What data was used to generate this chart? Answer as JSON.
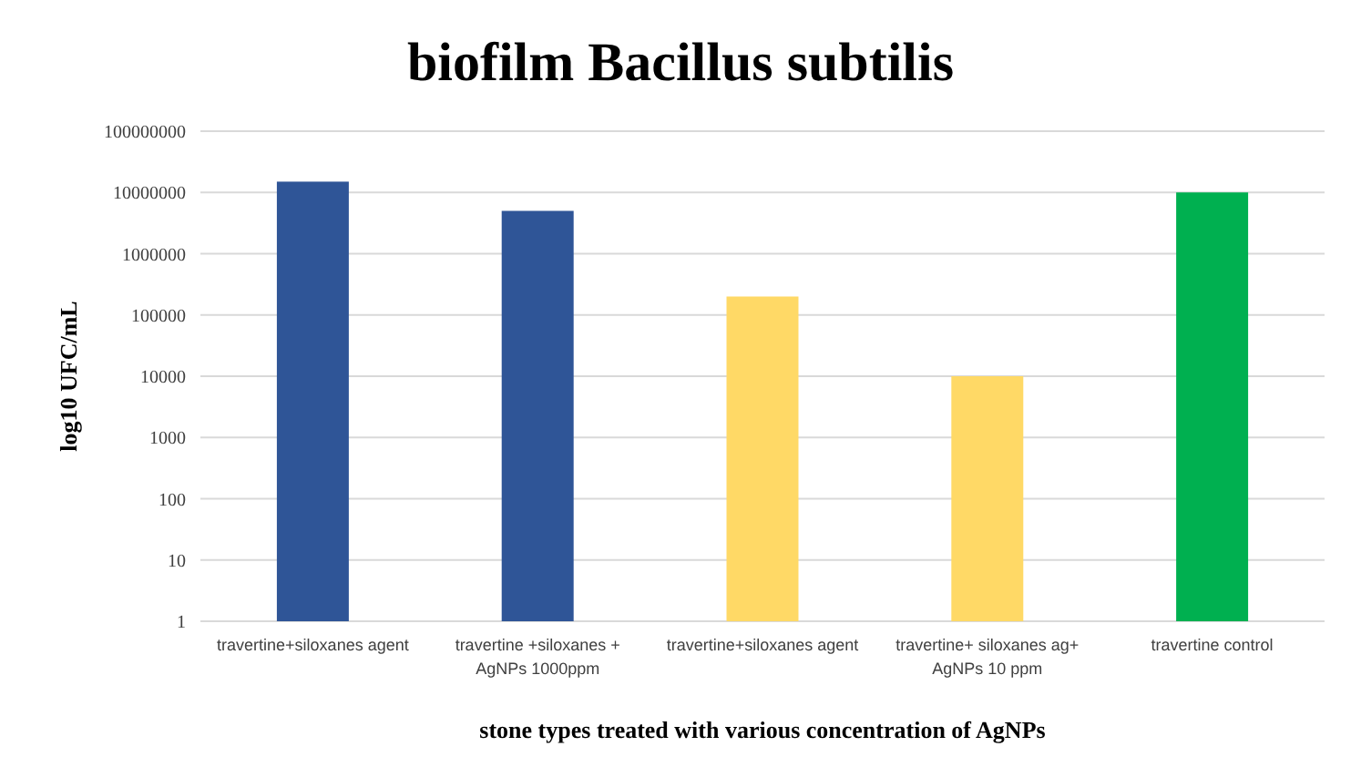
{
  "chart_data": {
    "type": "bar",
    "title": "biofilm Bacillus subtilis",
    "xlabel": "stone types treated with various concentration of AgNPs",
    "ylabel": "log10 UFC/mL",
    "categories": [
      "travertine+siloxanes agent",
      "travertine +siloxanes + AgNPs 1000ppm",
      "travertine+siloxanes agent",
      "travertine+ siloxanes ag+ AgNPs 10 ppm",
      "travertine control"
    ],
    "values": [
      15000000,
      5000000,
      200000,
      10000,
      10000000
    ],
    "colors": [
      "#2f5597",
      "#2f5597",
      "#ffd966",
      "#ffd966",
      "#00b050"
    ],
    "log": "y",
    "ylim": [
      1,
      100000000
    ],
    "yticks": [
      1,
      10,
      100,
      1000,
      10000,
      100000,
      1000000,
      10000000,
      100000000
    ],
    "grid": "y"
  }
}
